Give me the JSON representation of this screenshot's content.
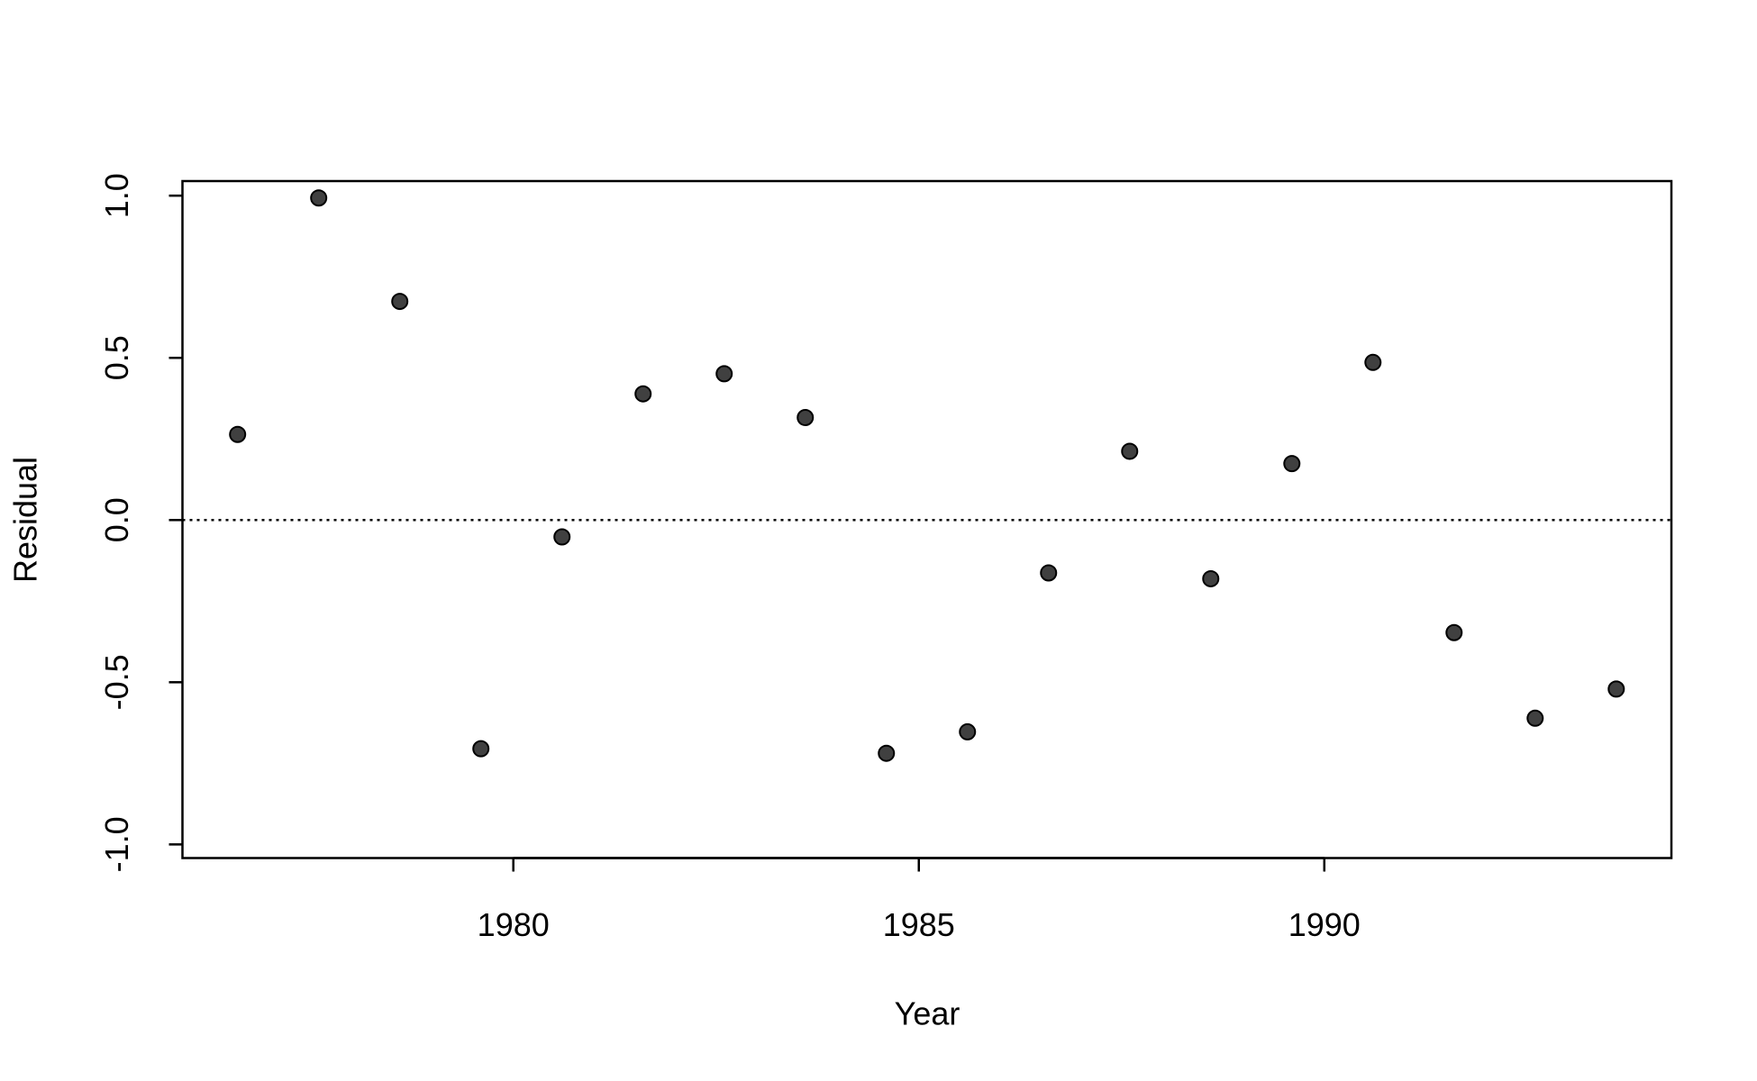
{
  "chart_data": {
    "type": "scatter",
    "x_label": "Year",
    "y_label": "Residual",
    "x": [
      1976.6,
      1977.6,
      1978.6,
      1979.6,
      1980.6,
      1981.6,
      1982.6,
      1983.6,
      1984.6,
      1985.6,
      1986.6,
      1987.6,
      1988.6,
      1989.6,
      1990.6,
      1991.6,
      1992.6,
      1993.6
    ],
    "series": [
      {
        "name": "Residual",
        "color": "#404040",
        "values": [
          0.264,
          0.993,
          0.674,
          -0.705,
          -0.052,
          0.389,
          0.451,
          0.316,
          -0.719,
          -0.653,
          -0.163,
          0.212,
          -0.181,
          0.174,
          0.486,
          -0.347,
          -0.611,
          -0.521
        ]
      }
    ],
    "xlim": [
      1975.92,
      1994.28
    ],
    "xticks": [
      1980,
      1985,
      1990
    ],
    "ylim": [
      -1.042,
      1.045
    ],
    "yticks": [
      {
        "value": -1,
        "label": "-1.0"
      },
      {
        "value": -0.5,
        "label": "-0.5"
      },
      {
        "value": 0,
        "label": "0.0"
      },
      {
        "value": 0.5,
        "label": "0.5"
      },
      {
        "value": 1,
        "label": "1.0"
      }
    ],
    "hline": 0,
    "grid": false
  }
}
